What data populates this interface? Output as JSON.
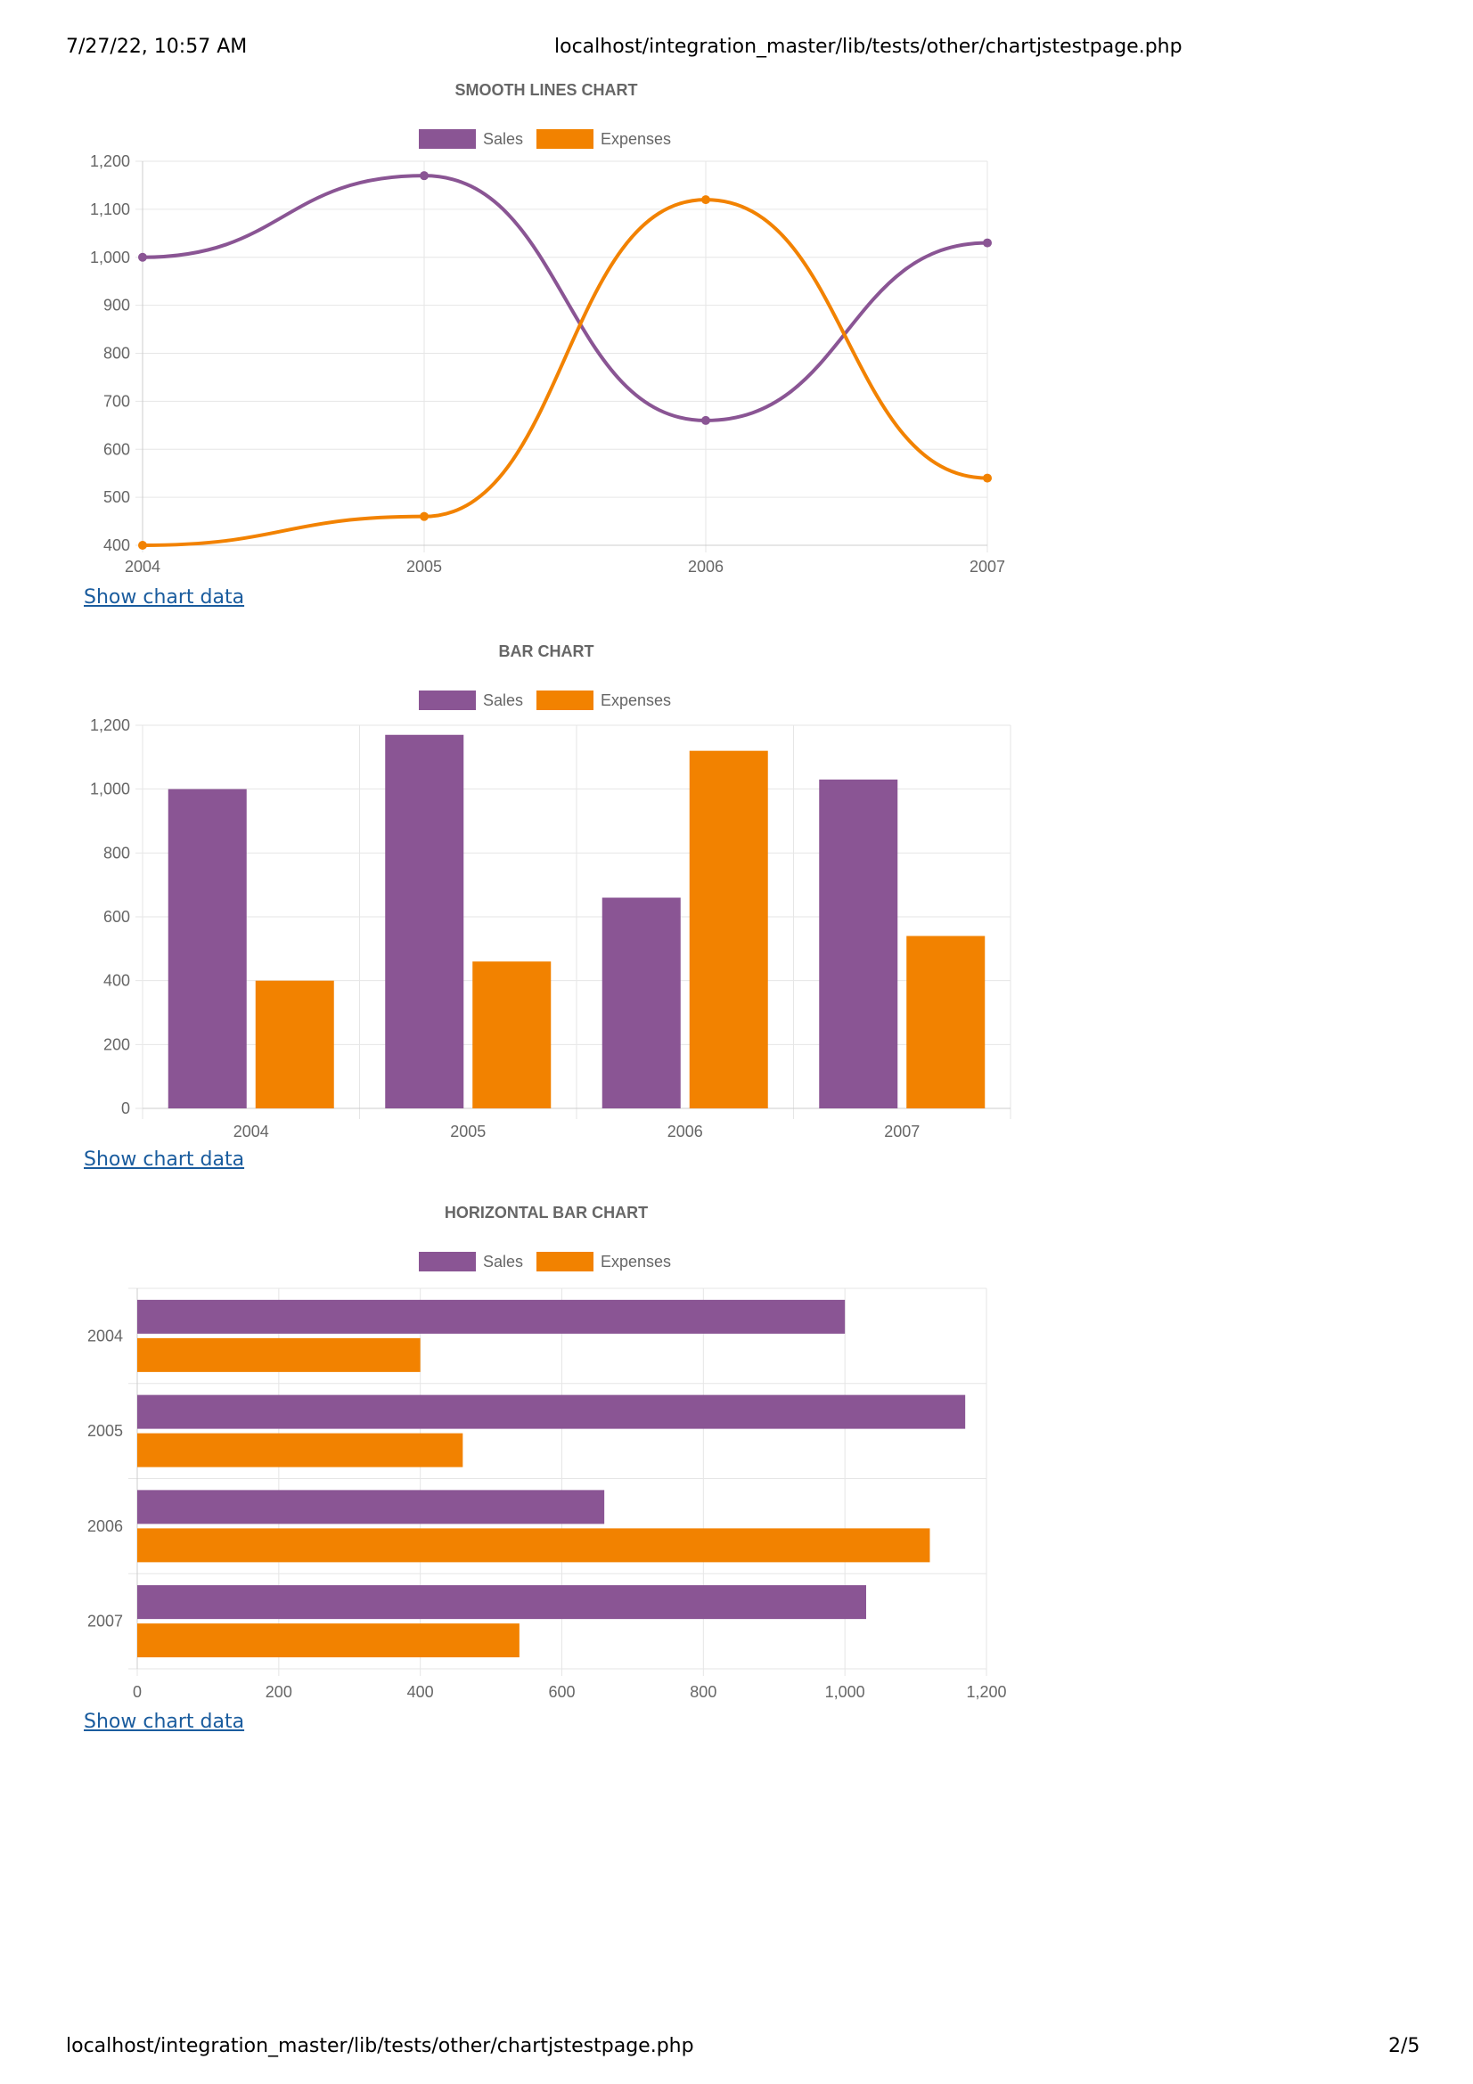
{
  "header": {
    "datetime": "7/27/22, 10:57 AM",
    "url": "localhost/integration_master/lib/tests/other/chartjstestpage.php"
  },
  "footer": {
    "url": "localhost/integration_master/lib/tests/other/chartjstestpage.php",
    "page": "2/5"
  },
  "colors": {
    "sales": "#8a5594",
    "expenses": "#f28200",
    "grid": "#e6e6e6",
    "text": "#666666",
    "link": "#1a5c9e"
  },
  "show_chart_data_label": "Show chart data",
  "chart_data": [
    {
      "type": "line",
      "smooth": true,
      "title": "SMOOTH LINES CHART",
      "categories": [
        "2004",
        "2005",
        "2006",
        "2007"
      ],
      "series": [
        {
          "name": "Sales",
          "values": [
            1000,
            1170,
            660,
            1030
          ]
        },
        {
          "name": "Expenses",
          "values": [
            400,
            460,
            1120,
            540
          ]
        }
      ],
      "ylim": [
        400,
        1200
      ],
      "yticks": [
        "400",
        "500",
        "600",
        "700",
        "800",
        "900",
        "1,000",
        "1,100",
        "1,200"
      ],
      "legend": "top",
      "grid": true
    },
    {
      "type": "bar",
      "title": "BAR CHART",
      "categories": [
        "2004",
        "2005",
        "2006",
        "2007"
      ],
      "series": [
        {
          "name": "Sales",
          "values": [
            1000,
            1170,
            660,
            1030
          ]
        },
        {
          "name": "Expenses",
          "values": [
            400,
            460,
            1120,
            540
          ]
        }
      ],
      "ylim": [
        0,
        1200
      ],
      "yticks": [
        "0",
        "200",
        "400",
        "600",
        "800",
        "1,000",
        "1,200"
      ],
      "legend": "top",
      "grid": true
    },
    {
      "type": "bar",
      "orientation": "horizontal",
      "title": "HORIZONTAL BAR CHART",
      "categories": [
        "2004",
        "2005",
        "2006",
        "2007"
      ],
      "series": [
        {
          "name": "Sales",
          "values": [
            1000,
            1170,
            660,
            1030
          ]
        },
        {
          "name": "Expenses",
          "values": [
            400,
            460,
            1120,
            540
          ]
        }
      ],
      "xlim": [
        0,
        1200
      ],
      "xticks": [
        "0",
        "200",
        "400",
        "600",
        "800",
        "1,000",
        "1,200"
      ],
      "legend": "top",
      "grid": true
    }
  ]
}
